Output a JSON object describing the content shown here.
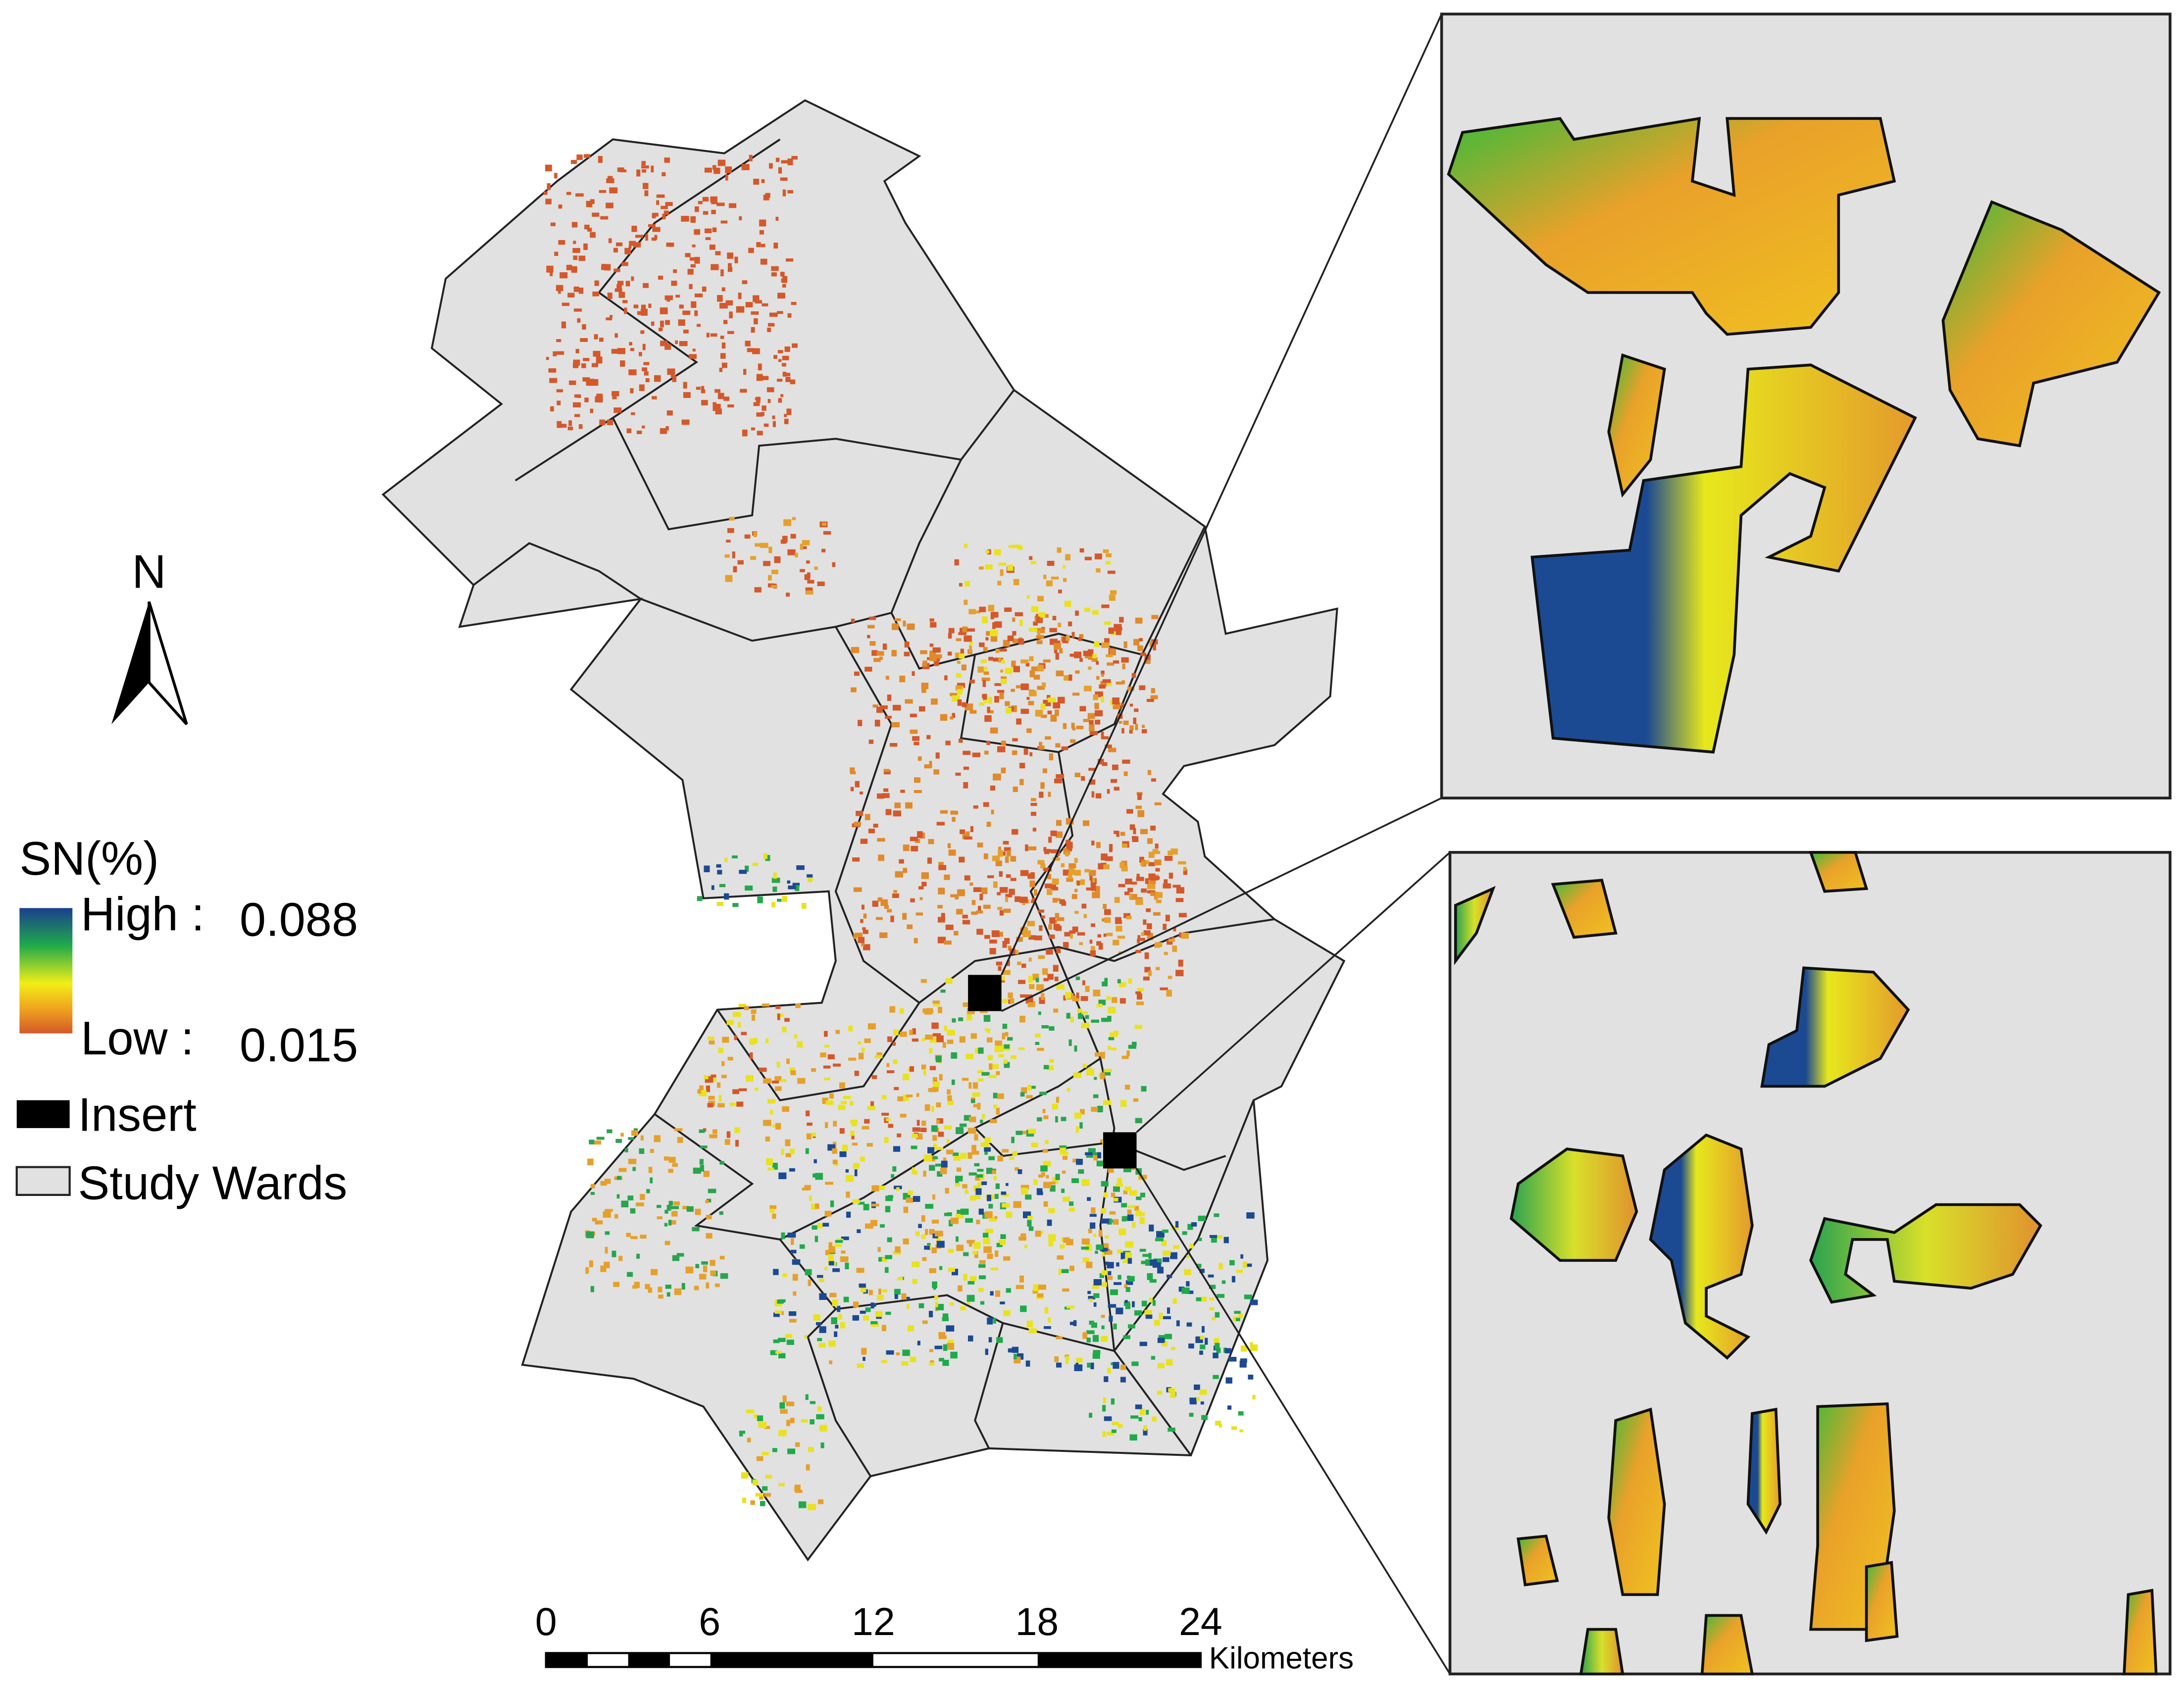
{
  "north_arrow": {
    "label": "N"
  },
  "legend": {
    "title": "SN(%)",
    "high": {
      "label": "High :",
      "value": 0.088
    },
    "low": {
      "label": "Low :",
      "value": 0.015
    },
    "items": [
      {
        "label": "Insert"
      },
      {
        "label": "Study Wards"
      }
    ]
  },
  "scale_bar": {
    "ticks": [
      0,
      6,
      12,
      18,
      24
    ],
    "unit": "Kilometers"
  }
}
